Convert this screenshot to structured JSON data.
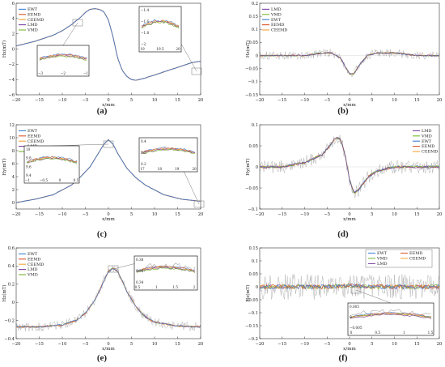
{
  "colors": {
    "EWT": "#3a7fd5",
    "EEMD": "#d9542a",
    "CEEMD": "#f2a23a",
    "LMD": "#7b3fa0",
    "VMD": "#77b530",
    "raw": "#a9a9a9",
    "gray": "#888888"
  },
  "chart_data": [
    {
      "id": "a",
      "type": "line",
      "caption": "(a)",
      "xlabel": "x/mm",
      "ylabel": "Hx(mT)",
      "xlim": [
        -20,
        20
      ],
      "ylim": [
        -6,
        6
      ],
      "xticks": [
        -20,
        -15,
        -10,
        -5,
        0,
        5,
        10,
        15,
        20
      ],
      "yticks": [
        -6,
        -4,
        -2,
        0,
        2,
        4,
        6
      ],
      "legend": [
        "EWT",
        "EEMD",
        "CEEMD",
        "LMD",
        "VMD"
      ],
      "legend_pos": "top-left",
      "x": [
        -20,
        -16,
        -12,
        -10,
        -8,
        -6,
        -5,
        -4,
        -3,
        -2,
        -1,
        0,
        1,
        2,
        3,
        4,
        5,
        6,
        8,
        10,
        12,
        14,
        16,
        18,
        20
      ],
      "y": [
        0.4,
        1.0,
        1.8,
        2.4,
        3.2,
        4.2,
        4.8,
        5.2,
        5.3,
        5.2,
        4.9,
        3.8,
        1.6,
        -1.2,
        -2.8,
        -3.6,
        -4.0,
        -4.1,
        -3.8,
        -3.4,
        -3.0,
        -2.6,
        -2.2,
        -1.8,
        -1.6
      ],
      "insets": [
        {
          "label": "inset-left",
          "xticks": [
            "-3",
            "-2",
            "-1"
          ],
          "yticks": []
        },
        {
          "label": "inset-right",
          "xticks": [
            "19",
            "19.5",
            "20"
          ],
          "yticks": [
            "-1.4",
            "-1.6",
            "-1.8",
            "-2"
          ]
        }
      ]
    },
    {
      "id": "b",
      "type": "line",
      "caption": "(b)",
      "xlabel": "x/mm",
      "ylabel": "Hz(mT)",
      "xlim": [
        -20,
        20
      ],
      "ylim": [
        -0.15,
        0.2
      ],
      "xticks": [
        -20,
        -15,
        -10,
        -5,
        0,
        5,
        10,
        15,
        20
      ],
      "yticks": [
        -0.15,
        -0.1,
        -0.05,
        0,
        0.05,
        0.1,
        0.15,
        0.2
      ],
      "legend": [
        "LMD",
        "VMD",
        "EWT",
        "EEMD",
        "CEEMD"
      ],
      "legend_pos": "top-left",
      "x": [
        -20,
        -15,
        -10,
        -6,
        -4,
        -2,
        -1,
        0,
        1,
        2,
        4,
        6,
        10,
        15,
        20
      ],
      "y": [
        0.0,
        0.0,
        0.0,
        0.01,
        0.01,
        -0.01,
        -0.04,
        -0.07,
        -0.07,
        -0.04,
        0.0,
        0.01,
        0.01,
        0.0,
        0.0
      ]
    },
    {
      "id": "c",
      "type": "line",
      "caption": "(c)",
      "xlabel": "x/mm",
      "ylabel": "Hy(mT)",
      "xlim": [
        -20,
        20
      ],
      "ylim": [
        -1,
        12
      ],
      "xticks": [
        -20,
        -15,
        -10,
        -5,
        0,
        5,
        10,
        15,
        20
      ],
      "yticks": [
        0,
        2,
        4,
        6,
        8,
        10,
        12
      ],
      "legend": [
        "EWT",
        "EEMD",
        "CEEMD",
        "LMD",
        "VMD"
      ],
      "legend_pos": "top-left",
      "x": [
        -20,
        -16,
        -12,
        -8,
        -6,
        -4,
        -2,
        -1,
        0,
        1,
        2,
        4,
        6,
        8,
        12,
        16,
        20
      ],
      "y": [
        0.0,
        0.5,
        1.2,
        2.7,
        4.0,
        5.5,
        7.8,
        9.0,
        9.7,
        9.0,
        7.6,
        5.3,
        3.8,
        2.7,
        1.2,
        0.5,
        0.2
      ],
      "insets": [
        {
          "label": "inset-left",
          "xticks": [
            "-1",
            "-0.5",
            "0",
            "0.5"
          ],
          "yticks": [
            "10",
            "9.8",
            "9.6",
            "9.4"
          ]
        },
        {
          "label": "inset-right",
          "xticks": [
            "17",
            "18",
            "19",
            "20"
          ],
          "yticks": [
            "0.4",
            "0.3",
            "0.2"
          ]
        }
      ]
    },
    {
      "id": "d",
      "type": "line",
      "caption": "(d)",
      "xlabel": "x/mm",
      "ylabel": "Hy(mT)",
      "xlim": [
        -20,
        20
      ],
      "ylim": [
        -0.1,
        0.1
      ],
      "xticks": [
        -20,
        -15,
        -10,
        -5,
        0,
        5,
        10,
        15,
        20
      ],
      "yticks": [
        -0.1,
        -0.05,
        0,
        0.05,
        0.1
      ],
      "legend": [
        "LMD",
        "VMD",
        "EWT",
        "EEMD",
        "CEEMD"
      ],
      "legend_pos": "top-right",
      "x": [
        -20,
        -15,
        -10,
        -6,
        -4,
        -3,
        -2,
        -1,
        0,
        1,
        2,
        3,
        4,
        6,
        10,
        15,
        20
      ],
      "y": [
        0.0,
        0.0,
        0.01,
        0.03,
        0.055,
        0.07,
        0.065,
        0.03,
        -0.03,
        -0.062,
        -0.055,
        -0.04,
        -0.025,
        -0.01,
        0.0,
        0.0,
        0.0
      ]
    },
    {
      "id": "e",
      "type": "line",
      "caption": "(e)",
      "xlabel": "x/mm",
      "ylabel": "Hz(mT)",
      "xlim": [
        -20,
        20
      ],
      "ylim": [
        -0.4,
        0.6
      ],
      "xticks": [
        -20,
        -15,
        -10,
        -5,
        0,
        5,
        10,
        15,
        20
      ],
      "yticks": [
        -0.4,
        -0.2,
        0,
        0.2,
        0.4,
        0.6
      ],
      "legend": [
        "EWT",
        "EEMD",
        "CEEMD",
        "LMD",
        "VMD"
      ],
      "legend_pos": "top-left",
      "x": [
        -20,
        -15,
        -10,
        -7,
        -5,
        -3,
        -2,
        -1,
        0,
        1,
        2,
        3,
        4,
        6,
        8,
        10,
        15,
        20
      ],
      "y": [
        -0.27,
        -0.27,
        -0.25,
        -0.2,
        -0.12,
        0.02,
        0.12,
        0.24,
        0.34,
        0.38,
        0.34,
        0.24,
        0.12,
        -0.05,
        -0.16,
        -0.22,
        -0.26,
        -0.27
      ],
      "insets": [
        {
          "label": "inset",
          "xticks": [
            "0.5",
            "1",
            "1.5",
            "2"
          ],
          "yticks": [
            "0.38",
            "0.36",
            "0.34"
          ]
        }
      ]
    },
    {
      "id": "f",
      "type": "line",
      "caption": "(f)",
      "xlabel": "x/mm",
      "ylabel": "Hz(mT)",
      "xlim": [
        -20,
        20
      ],
      "ylim": [
        -0.2,
        0.15
      ],
      "xticks": [
        -20,
        -15,
        -10,
        -5,
        0,
        5,
        10,
        15,
        20
      ],
      "yticks": [
        -0.2,
        -0.15,
        -0.1,
        -0.05,
        0,
        0.05,
        0.1,
        0.15
      ],
      "legend": [
        "EWT",
        "EEMD",
        "VMD",
        "CEEMD",
        "LMD"
      ],
      "legend_pos": "top",
      "x": [
        -20,
        -10,
        -5,
        0,
        5,
        10,
        20
      ],
      "y": [
        0.0,
        0.0,
        0.0,
        0.005,
        0.0,
        0.0,
        0.0
      ],
      "insets": [
        {
          "label": "inset",
          "xticks": [
            "0",
            "0.5",
            "1",
            "1.5"
          ],
          "yticks": [
            "0.005",
            "0",
            "-0.005"
          ]
        }
      ]
    }
  ]
}
